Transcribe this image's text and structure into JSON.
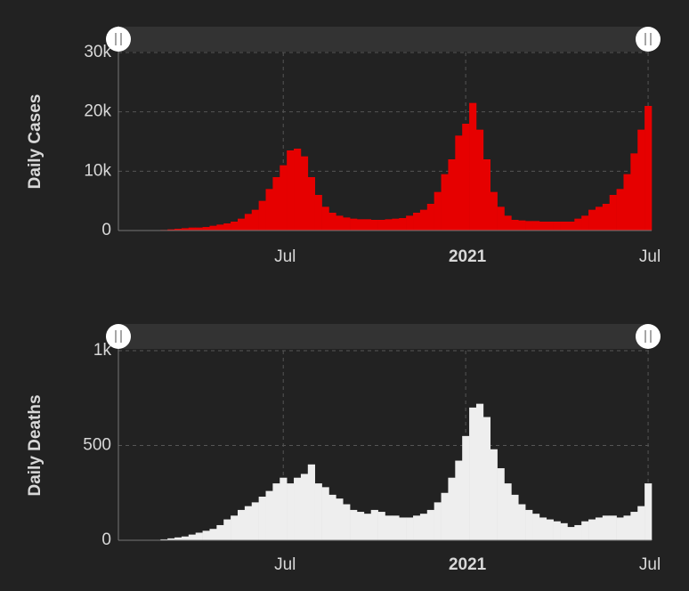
{
  "chart_data": [
    {
      "type": "bar",
      "ylabel": "Daily Cases",
      "color": "#e60000",
      "grid": true,
      "categories": [
        null,
        null,
        null,
        null,
        null,
        null,
        null,
        null,
        null,
        null,
        null,
        null,
        null,
        null,
        null,
        null,
        null,
        null,
        null,
        null,
        null,
        null,
        null,
        "Jul",
        null,
        null,
        null,
        null,
        null,
        null,
        null,
        null,
        null,
        null,
        null,
        null,
        null,
        null,
        null,
        null,
        null,
        null,
        null,
        null,
        null,
        null,
        null,
        null,
        null,
        "2021",
        null,
        null,
        null,
        null,
        null,
        null,
        null,
        null,
        null,
        null,
        null,
        null,
        null,
        null,
        null,
        null,
        null,
        null,
        null,
        null,
        null,
        null,
        null,
        null,
        null,
        "Jul"
      ],
      "values": [
        0,
        0,
        0,
        0,
        0,
        0,
        100,
        200,
        300,
        400,
        500,
        500,
        600,
        800,
        1000,
        1200,
        1500,
        2000,
        2800,
        3500,
        5000,
        7000,
        9000,
        11000,
        13500,
        13800,
        12500,
        9000,
        6000,
        4000,
        3000,
        2500,
        2200,
        2000,
        1900,
        1900,
        1800,
        1800,
        1900,
        2000,
        2100,
        2500,
        3000,
        3500,
        4500,
        6500,
        9500,
        12000,
        16000,
        18000,
        21500,
        17000,
        12000,
        6500,
        4000,
        2500,
        1800,
        1700,
        1600,
        1600,
        1500,
        1500,
        1500,
        1500,
        1500,
        2000,
        2500,
        3500,
        4000,
        4500,
        6000,
        7000,
        9500,
        13000,
        17000,
        21000
      ],
      "ylim": [
        0,
        30000
      ],
      "yticks": [
        0,
        {
          "value": 10000,
          "label": "10k"
        },
        {
          "value": 20000,
          "label": "20k"
        },
        {
          "value": 30000,
          "label": "30k"
        }
      ]
    },
    {
      "type": "bar",
      "ylabel": "Daily Deaths",
      "color": "#eeeeee",
      "grid": true,
      "categories": [
        null,
        null,
        null,
        null,
        null,
        null,
        null,
        null,
        null,
        null,
        null,
        null,
        null,
        null,
        null,
        null,
        null,
        null,
        null,
        null,
        null,
        null,
        null,
        "Jul",
        null,
        null,
        null,
        null,
        null,
        null,
        null,
        null,
        null,
        null,
        null,
        null,
        null,
        null,
        null,
        null,
        null,
        null,
        null,
        null,
        null,
        null,
        null,
        null,
        null,
        "2021",
        null,
        null,
        null,
        null,
        null,
        null,
        null,
        null,
        null,
        null,
        null,
        null,
        null,
        null,
        null,
        null,
        null,
        null,
        null,
        null,
        null,
        null,
        null,
        null,
        null,
        "Jul"
      ],
      "values": [
        0,
        0,
        0,
        0,
        0,
        0,
        5,
        10,
        15,
        20,
        30,
        40,
        50,
        60,
        80,
        110,
        130,
        160,
        180,
        200,
        230,
        260,
        300,
        330,
        300,
        330,
        350,
        400,
        300,
        280,
        240,
        220,
        190,
        160,
        150,
        140,
        160,
        150,
        130,
        130,
        120,
        120,
        130,
        140,
        160,
        200,
        250,
        330,
        420,
        550,
        700,
        720,
        650,
        480,
        380,
        300,
        240,
        190,
        160,
        140,
        120,
        110,
        100,
        90,
        70,
        80,
        100,
        110,
        120,
        130,
        130,
        120,
        130,
        150,
        180,
        300
      ],
      "ylim": [
        0,
        1000
      ],
      "yticks": [
        0,
        500,
        {
          "value": 1000,
          "label": "1k"
        }
      ]
    }
  ]
}
